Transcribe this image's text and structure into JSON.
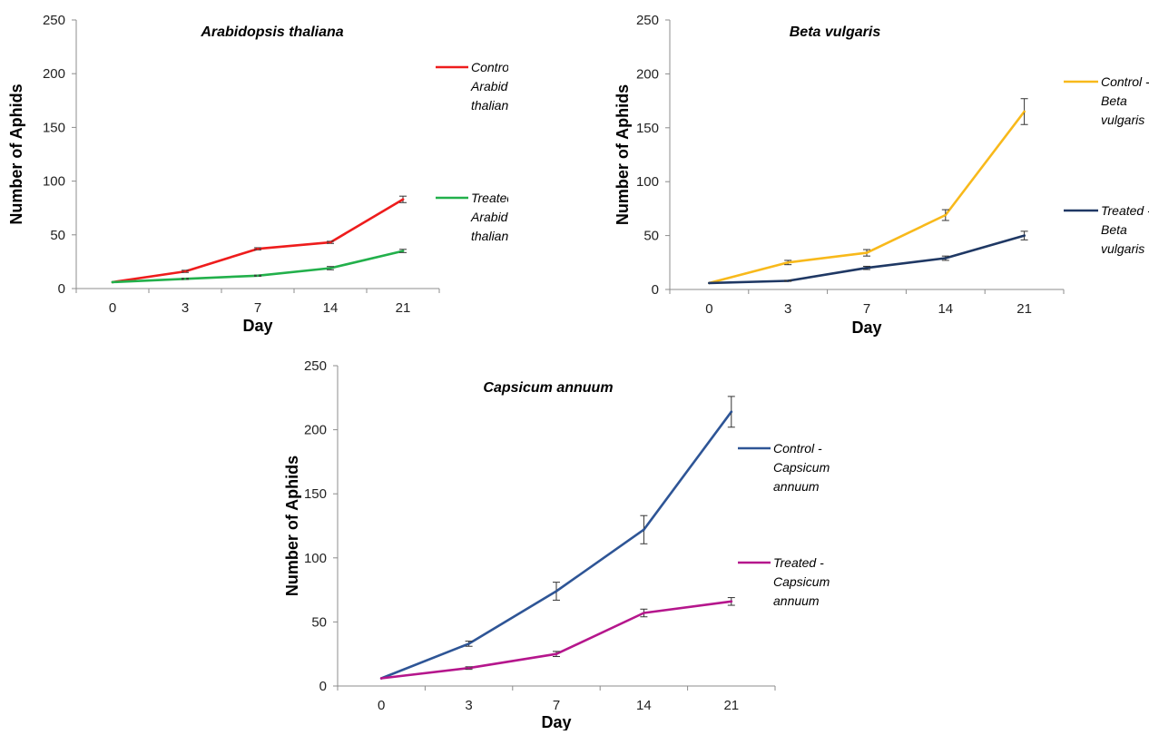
{
  "chart_data": [
    {
      "type": "line",
      "title": "Arabidopsis thaliana",
      "xlabel": "Day",
      "ylabel": "Number of Aphids",
      "categories": [
        "0",
        "3",
        "7",
        "14",
        "21"
      ],
      "ylim": [
        0,
        250
      ],
      "yticks": [
        "0",
        "50",
        "100",
        "150",
        "200",
        "250"
      ],
      "grid": false,
      "legend_position": "right",
      "series": [
        {
          "name": "Control Arabidopsis thaliana",
          "legend_lines": [
            "Control",
            "Arabidopsis",
            "thaliana"
          ],
          "color": "#ee1c1c",
          "values": [
            6,
            16,
            37,
            43,
            83
          ],
          "errors": [
            0,
            1,
            1,
            1,
            3
          ]
        },
        {
          "name": "Treated Arabidopsis thaliana",
          "legend_lines": [
            "Treated",
            "Arabidopsis",
            "thaliana"
          ],
          "color": "#22b04b",
          "values": [
            6,
            9,
            12,
            19,
            35
          ],
          "errors": [
            0,
            0.5,
            0.5,
            1.5,
            1.5
          ]
        }
      ]
    },
    {
      "type": "line",
      "title": "Beta vulgaris",
      "xlabel": "Day",
      "ylabel": "Number of Aphids",
      "categories": [
        "0",
        "3",
        "7",
        "14",
        "21"
      ],
      "ylim": [
        0,
        250
      ],
      "yticks": [
        "0",
        "50",
        "100",
        "150",
        "200",
        "250"
      ],
      "grid": false,
      "legend_position": "right",
      "series": [
        {
          "name": "Control - Beta vulgaris",
          "legend_lines": [
            "Control -",
            "Beta",
            "vulgaris"
          ],
          "color": "#f8b91b",
          "values": [
            6,
            25,
            34,
            69,
            165
          ],
          "errors": [
            0,
            2,
            3,
            5,
            12
          ]
        },
        {
          "name": "Treated - Beta vulgaris",
          "legend_lines": [
            "Treated -",
            "Beta",
            "vulgaris"
          ],
          "color": "#1f3864",
          "values": [
            6,
            8,
            20,
            29,
            50
          ],
          "errors": [
            0,
            0.5,
            1.5,
            2,
            4
          ]
        }
      ]
    },
    {
      "type": "line",
      "title": "Capsicum annuum",
      "xlabel": "Day",
      "ylabel": "Number of Aphids",
      "categories": [
        "0",
        "3",
        "7",
        "14",
        "21"
      ],
      "ylim": [
        0,
        250
      ],
      "yticks": [
        "0",
        "50",
        "100",
        "150",
        "200",
        "250"
      ],
      "grid": false,
      "legend_position": "right",
      "series": [
        {
          "name": "Control - Capsicum annuum",
          "legend_lines": [
            "Control -",
            "Capsicum",
            "annuum"
          ],
          "color": "#2e5596",
          "values": [
            6,
            33,
            74,
            122,
            214
          ],
          "errors": [
            0,
            2,
            7,
            11,
            12
          ]
        },
        {
          "name": "Treated - Capsicum annuum",
          "legend_lines": [
            "Treated -",
            "Capsicum",
            "annuum"
          ],
          "color": "#b5168c",
          "values": [
            6,
            14,
            25,
            57,
            66
          ],
          "errors": [
            0,
            1,
            2,
            3,
            3
          ]
        }
      ]
    }
  ]
}
